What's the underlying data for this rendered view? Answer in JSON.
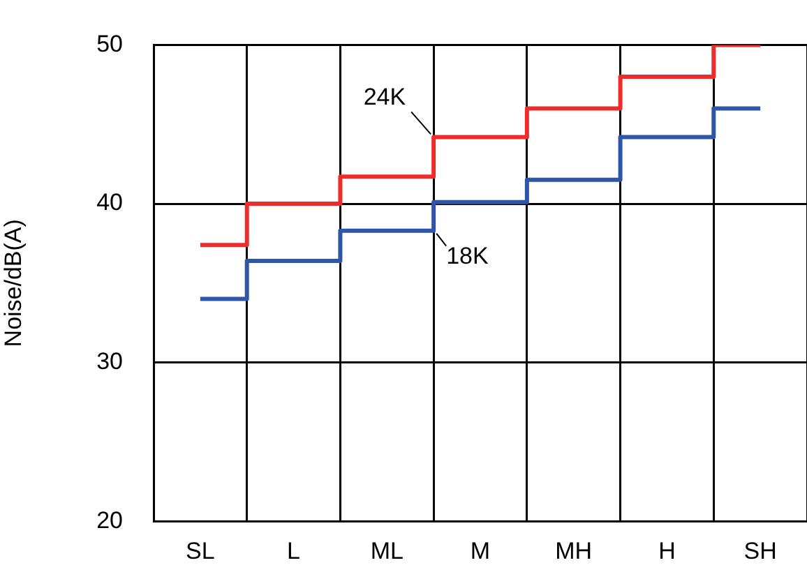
{
  "chart_data": {
    "type": "step",
    "ylabel": "Noise/dB(A)",
    "categories": [
      "SL",
      "L",
      "ML",
      "M",
      "MH",
      "H",
      "SH"
    ],
    "series": [
      {
        "name": "24K",
        "color": "#ee2c2c",
        "values": [
          37.4,
          40,
          41.7,
          44.2,
          46,
          48,
          50
        ]
      },
      {
        "name": "18K",
        "color": "#2f55a8",
        "values": [
          34,
          36.4,
          38.3,
          40.1,
          41.5,
          44.2,
          46
        ]
      }
    ],
    "ylim": [
      20,
      50
    ],
    "yticks": [
      20,
      30,
      40,
      50
    ],
    "grid": true,
    "legend": false
  }
}
